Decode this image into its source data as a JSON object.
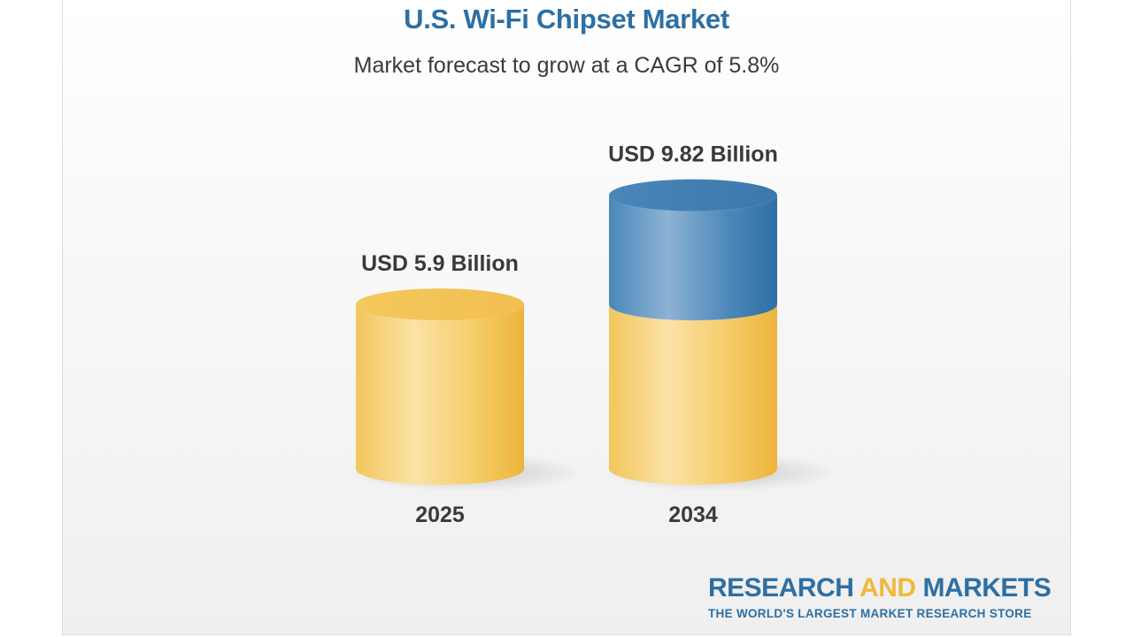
{
  "chart_data": {
    "type": "bar",
    "title": "U.S. Wi-Fi Chipset Market",
    "subtitle": "Market forecast to grow at a CAGR of 5.8%",
    "categories": [
      "2025",
      "2034"
    ],
    "values": [
      5.9,
      9.82
    ],
    "value_labels": [
      "USD 5.9 Billion",
      "USD 9.82 Billion"
    ],
    "unit": "USD Billion",
    "cagr_percent": 5.8,
    "grid": false,
    "legend": "none",
    "colors": {
      "base": "#f3c55a",
      "growth": "#3f7fb5"
    }
  },
  "brand": {
    "word1": "RESEARCH",
    "word2": "AND",
    "word3": "MARKETS",
    "tagline": "THE WORLD'S LARGEST MARKET RESEARCH STORE"
  }
}
